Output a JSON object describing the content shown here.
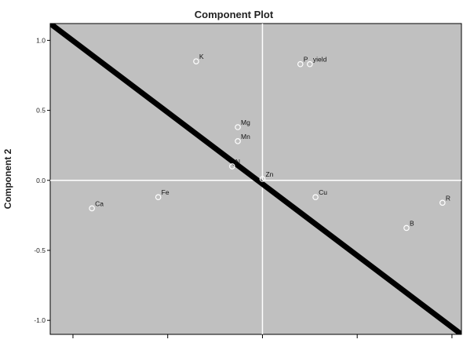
{
  "chart_data": {
    "type": "scatter",
    "title": "Component Plot",
    "xlabel": "",
    "ylabel": "Component 2",
    "xlim": [
      -1.12,
      1.05
    ],
    "ylim": [
      -1.1,
      1.12
    ],
    "yticks": [
      1.0,
      0.5,
      0.0,
      -0.5,
      -1.0
    ],
    "ytick_labels": [
      "1.0",
      "0.5",
      "0.0",
      "-0.5",
      "-1.0"
    ],
    "xticks": [
      -1.0,
      -0.5,
      0.0,
      0.5,
      1.0
    ],
    "xtick_labels": [],
    "reference_lines": {
      "x": 0,
      "y": 0
    },
    "diagonal_line": {
      "from": [
        -1.12,
        1.12
      ],
      "to": [
        1.05,
        -1.1
      ]
    },
    "points": [
      {
        "label": "K",
        "x": -0.35,
        "y": 0.85
      },
      {
        "label": "P",
        "x": 0.2,
        "y": 0.83
      },
      {
        "label": "yield",
        "x": 0.25,
        "y": 0.83
      },
      {
        "label": "Mg",
        "x": -0.13,
        "y": 0.38
      },
      {
        "label": "Mn",
        "x": -0.13,
        "y": 0.28
      },
      {
        "label": "N",
        "x": -0.16,
        "y": 0.1
      },
      {
        "label": "Zn",
        "x": 0.0,
        "y": 0.01
      },
      {
        "label": "Ca",
        "x": -0.9,
        "y": -0.2
      },
      {
        "label": "Fe",
        "x": -0.55,
        "y": -0.12
      },
      {
        "label": "Cu",
        "x": 0.28,
        "y": -0.12
      },
      {
        "label": "R",
        "x": 0.95,
        "y": -0.16
      },
      {
        "label": "B",
        "x": 0.76,
        "y": -0.34
      }
    ],
    "grid": false,
    "legend": "none",
    "colors": {
      "plot_bg": "#c0c0c0",
      "marker_edge": "#ffffff",
      "diagonal": "#000000",
      "ref_lines": "#ffffff"
    }
  }
}
